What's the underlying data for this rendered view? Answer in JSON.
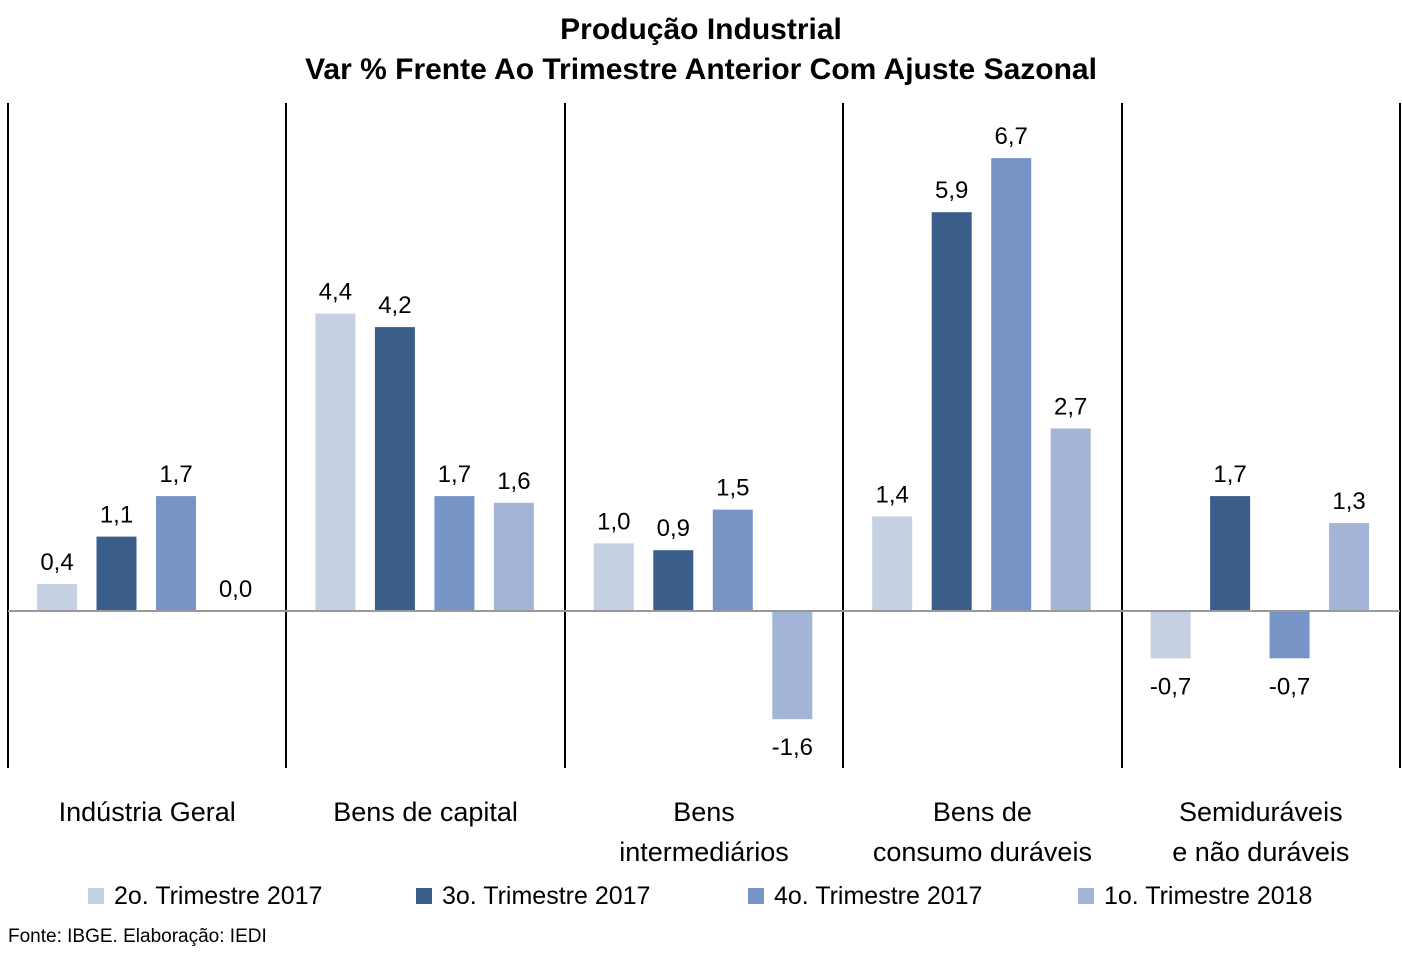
{
  "chart_data": {
    "type": "bar",
    "title": [
      "Produção Industrial",
      "Var % Frente Ao Trimestre Anterior Com Ajuste Sazonal"
    ],
    "categories": [
      [
        "Indústria Geral"
      ],
      [
        "Bens de capital"
      ],
      [
        "Bens",
        "intermediários"
      ],
      [
        "Bens de",
        "consumo duráveis"
      ],
      [
        "Semiduráveis",
        "e não duráveis"
      ]
    ],
    "series": [
      {
        "name": "2o. Trimestre 2017",
        "color": "#C5D0E3",
        "values": [
          0.4,
          4.4,
          1.0,
          1.4,
          -0.7
        ],
        "labels": [
          "0,4",
          "4,4",
          "1,0",
          "1,4",
          "-0,7"
        ]
      },
      {
        "name": "3o. Trimestre 2017",
        "color": "#3B5D8A",
        "values": [
          1.1,
          4.2,
          0.9,
          5.9,
          1.7
        ],
        "labels": [
          "1,1",
          "4,2",
          "0,9",
          "5,9",
          "1,7"
        ]
      },
      {
        "name": "4o. Trimestre 2017",
        "color": "#7695C6",
        "values": [
          1.7,
          1.7,
          1.5,
          6.7,
          -0.7
        ],
        "labels": [
          "1,7",
          "1,7",
          "1,5",
          "6,7",
          "-0,7"
        ]
      },
      {
        "name": "1o. Trimestre 2018",
        "color": "#A3B4D6",
        "values": [
          0.0,
          1.6,
          -1.6,
          2.7,
          1.3
        ],
        "labels": [
          "0,0",
          "1,6",
          "-1,6",
          "2,7",
          "1,3"
        ]
      }
    ],
    "legend_position": "bottom",
    "grid": false
  },
  "source": "Fonte: IBGE. Elaboração: IEDI"
}
